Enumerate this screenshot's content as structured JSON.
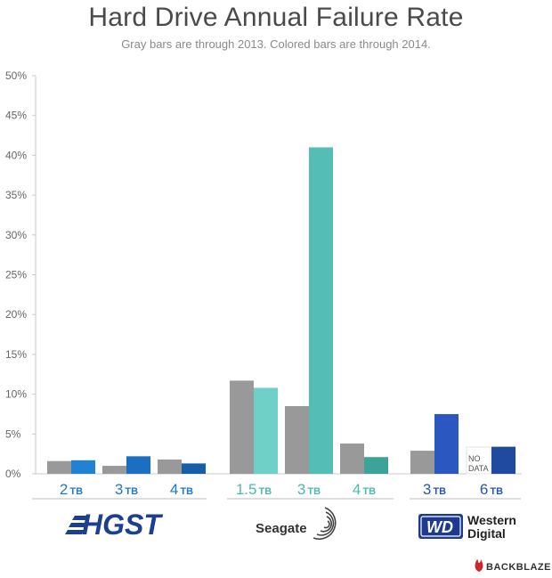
{
  "chart_data": {
    "type": "bar",
    "title": "Hard Drive Annual Failure Rate",
    "subtitle": "Gray bars are through 2013.  Colored bars are through 2014.",
    "ylim": [
      0,
      50
    ],
    "yticks": [
      "0%",
      "5%",
      "10%",
      "15%",
      "20%",
      "25%",
      "30%",
      "35%",
      "40%",
      "45%",
      "50%"
    ],
    "grid": false,
    "series": [
      {
        "name": "through 2013",
        "color": "#999999"
      },
      {
        "name": "through 2014",
        "color": "colored by manufacturer"
      }
    ],
    "groups": [
      {
        "manufacturer": "HGST",
        "logo_text": "HGST",
        "label_color": "#1f78c8",
        "categories": [
          {
            "size": "2",
            "unit": "TB",
            "value_2013": 1.6,
            "value_2014": 1.7,
            "color_2014": "#1f82d2"
          },
          {
            "size": "3",
            "unit": "TB",
            "value_2013": 1.0,
            "value_2014": 2.2,
            "color_2014": "#1a6fc0"
          },
          {
            "size": "4",
            "unit": "TB",
            "value_2013": 1.8,
            "value_2014": 1.3,
            "color_2014": "#155fa6"
          }
        ]
      },
      {
        "manufacturer": "Seagate",
        "logo_text": "Seagate",
        "label_color": "#4fb8ae",
        "categories": [
          {
            "size": "1.5",
            "unit": "TB",
            "value_2013": 11.7,
            "value_2014": 10.8,
            "color_2014": "#6fd0c8"
          },
          {
            "size": "3",
            "unit": "TB",
            "value_2013": 8.5,
            "value_2014": 41.0,
            "color_2014": "#54bdb4"
          },
          {
            "size": "4",
            "unit": "TB",
            "value_2013": 3.8,
            "value_2014": 2.1,
            "color_2014": "#3da399"
          }
        ]
      },
      {
        "manufacturer": "Western Digital",
        "logo_text": "Western Digital",
        "logo_mark": "WD",
        "label_color": "#2556b3",
        "categories": [
          {
            "size": "3",
            "unit": "TB",
            "value_2013": 2.9,
            "value_2014": 7.5,
            "color_2014": "#2b57c0"
          },
          {
            "size": "6",
            "unit": "TB",
            "value_2013": null,
            "value_2014": 3.4,
            "color_2014": "#1f4a9e",
            "no_data_text": [
              "NO",
              "DATA"
            ]
          }
        ]
      }
    ]
  },
  "footer": {
    "brand": "BACKBLAZE",
    "brand_color": "#c8282e"
  }
}
